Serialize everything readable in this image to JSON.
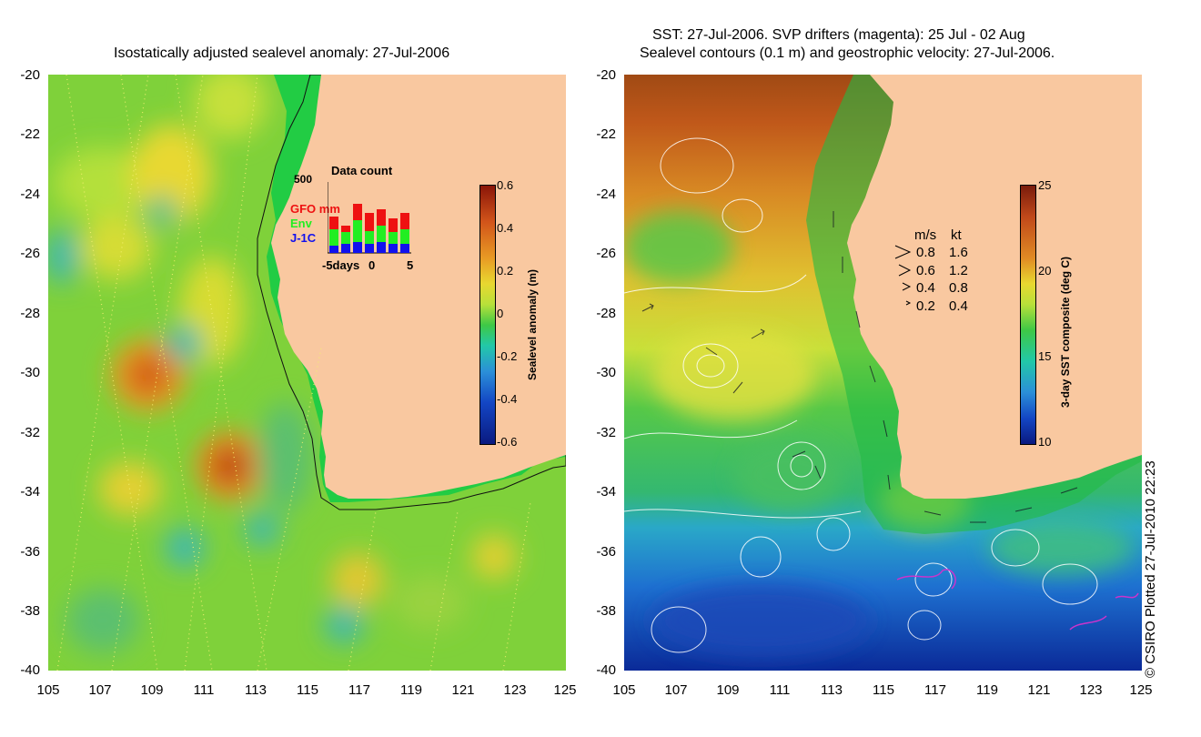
{
  "left_panel": {
    "title": "Isostatically adjusted sealevel anomaly: 27-Jul-2006",
    "y_ticks": [
      "-20",
      "-22",
      "-24",
      "-26",
      "-28",
      "-30",
      "-32",
      "-34",
      "-36",
      "-38",
      "-40"
    ],
    "x_ticks": [
      "105",
      "107",
      "109",
      "111",
      "113",
      "115",
      "117",
      "119",
      "121",
      "123",
      "125"
    ],
    "colorbar": {
      "label": "Sealevel anomaly (m)",
      "ticks": [
        "0.6",
        "0.4",
        "0.2",
        "0",
        "-0.2",
        "-0.4",
        "-0.6"
      ]
    },
    "inset": {
      "title": "Data count",
      "y_max": "500",
      "legend": [
        "GFO mm",
        "Env",
        "J-1C"
      ],
      "x_ticks": [
        "-5days",
        "0",
        "5"
      ],
      "colors": {
        "gfo": "#ee1111",
        "env": "#22ee22",
        "j1c": "#1111ee"
      }
    }
  },
  "right_panel": {
    "title_line1": "SST: 27-Jul-2006. SVP drifters (magenta): 25 Jul - 02 Aug",
    "title_line2": "Sealevel contours (0.1 m) and geostrophic velocity: 27-Jul-2006.",
    "y_ticks": [
      "-20",
      "-22",
      "-24",
      "-26",
      "-28",
      "-30",
      "-32",
      "-34",
      "-36",
      "-38",
      "-40"
    ],
    "x_ticks": [
      "105",
      "107",
      "109",
      "111",
      "113",
      "115",
      "117",
      "119",
      "121",
      "123",
      "125"
    ],
    "colorbar": {
      "label": "3-day SST composite (deg C)",
      "ticks": [
        "25",
        "20",
        "15",
        "10"
      ]
    },
    "velocity_legend": {
      "header_ms": "m/s",
      "header_kt": "kt",
      "rows": [
        {
          "ms": "0.8",
          "kt": "1.6"
        },
        {
          "ms": "0.6",
          "kt": "1.2"
        },
        {
          "ms": "0.4",
          "kt": "0.8"
        },
        {
          "ms": "0.2",
          "kt": "0.4"
        }
      ]
    }
  },
  "credit": "© CSIRO Plotted 27-Jul-2010 22:23",
  "colors": {
    "land": "#f9c8a0",
    "shelf": "#22cc44"
  }
}
